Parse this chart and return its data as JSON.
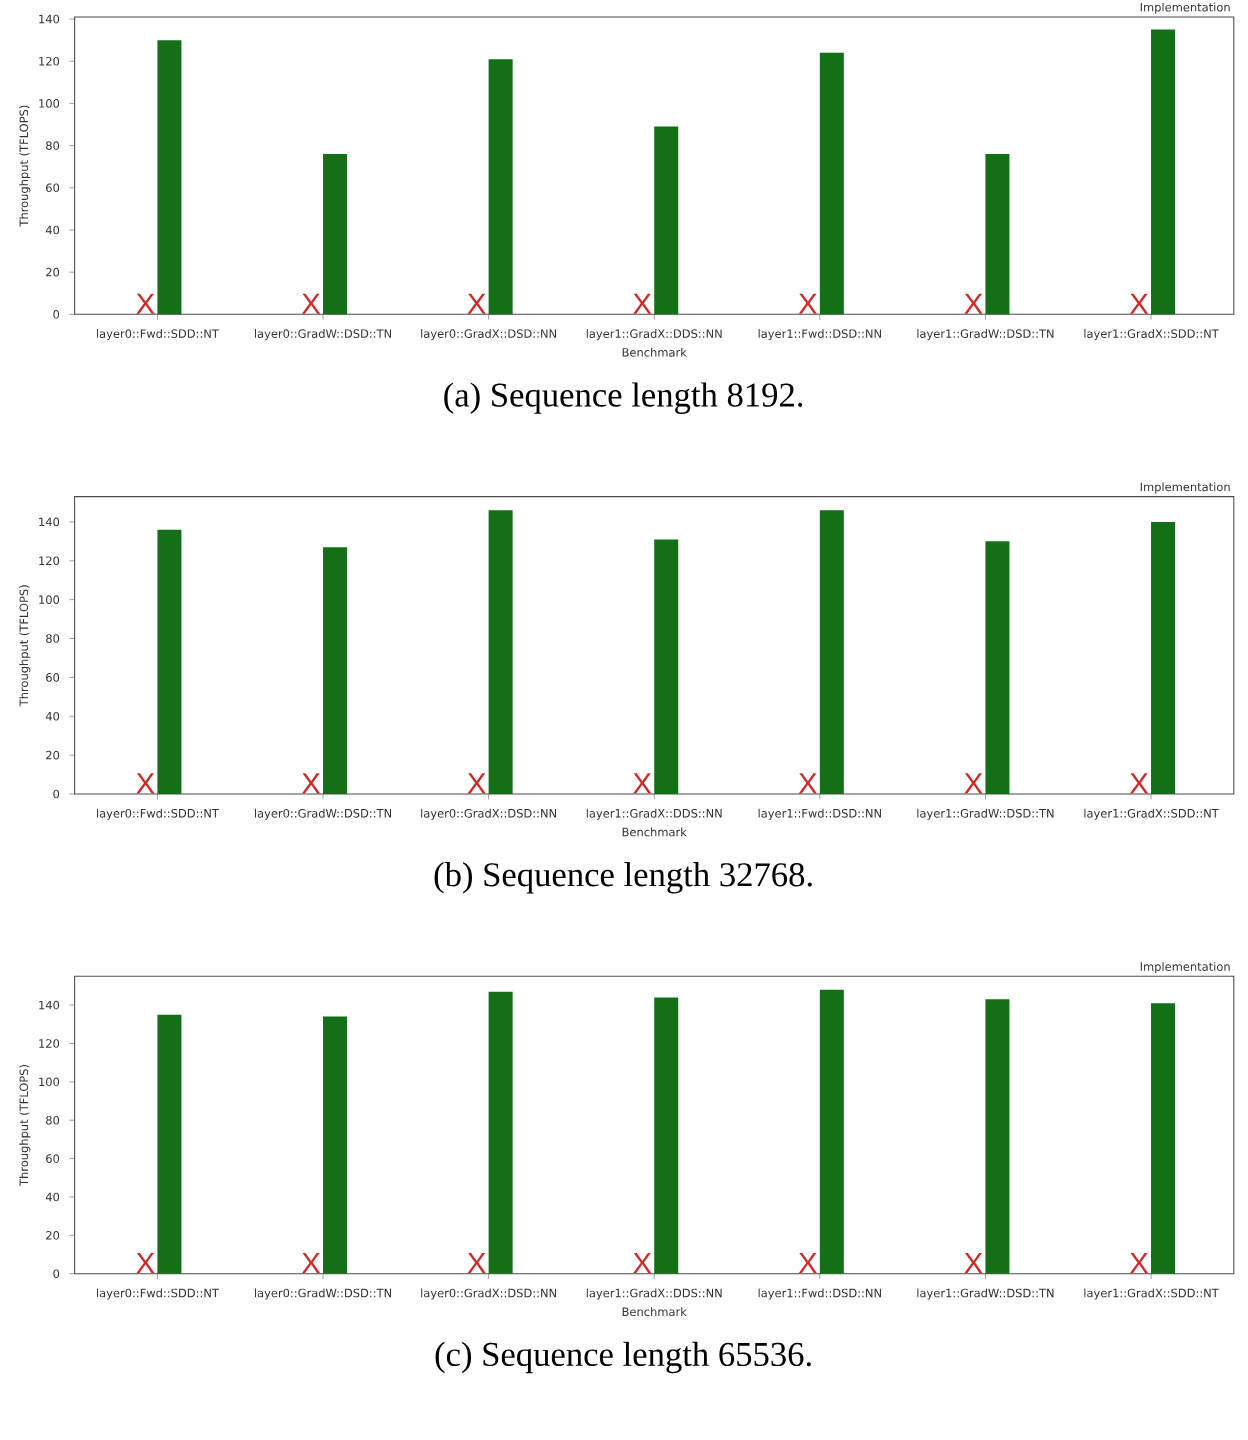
{
  "chart_data": [
    {
      "type": "bar",
      "title": "(a) Sequence length 8192.",
      "xlabel": "Benchmark",
      "ylabel": "Throughput (TFLOPS)",
      "legend_title": "Implementation",
      "categories": [
        "layer0::Fwd::SDD::NT",
        "layer0::GradW::DSD::TN",
        "layer0::GradX::DSD::NN",
        "layer1::GradX::DDS::NN",
        "layer1::Fwd::DSD::NN",
        "layer1::GradW::DSD::TN",
        "layer1::GradX::SDD::NT"
      ],
      "series": [
        {
          "color": "#d62728",
          "values": [
            null,
            null,
            null,
            null,
            null,
            null,
            null
          ]
        },
        {
          "color": "#137016",
          "values": [
            130,
            76,
            121,
            89,
            124,
            76,
            135
          ]
        }
      ],
      "ylim": [
        0,
        141
      ],
      "yticks": [
        0,
        20,
        40,
        60,
        80,
        100,
        120,
        140
      ],
      "annotations": [
        {
          "text": "X",
          "x": "layer0::Fwd::SDD::NT",
          "y": 0
        },
        {
          "text": "X",
          "x": "layer0::GradW::DSD::TN",
          "y": 0
        },
        {
          "text": "X",
          "x": "layer0::GradX::DSD::NN",
          "y": 0
        },
        {
          "text": "X",
          "x": "layer1::GradX::DDS::NN",
          "y": 0
        },
        {
          "text": "X",
          "x": "layer1::Fwd::DSD::NN",
          "y": 0
        },
        {
          "text": "X",
          "x": "layer1::GradW::DSD::TN",
          "y": 0
        },
        {
          "text": "X",
          "x": "layer1::GradX::SDD::NT",
          "y": 0
        }
      ]
    },
    {
      "type": "bar",
      "title": "(b) Sequence length 32768.",
      "xlabel": "Benchmark",
      "ylabel": "Throughput (TFLOPS)",
      "legend_title": "Implementation",
      "categories": [
        "layer0::Fwd::SDD::NT",
        "layer0::GradW::DSD::TN",
        "layer0::GradX::DSD::NN",
        "layer1::GradX::DDS::NN",
        "layer1::Fwd::DSD::NN",
        "layer1::GradW::DSD::TN",
        "layer1::GradX::SDD::NT"
      ],
      "series": [
        {
          "color": "#d62728",
          "values": [
            null,
            null,
            null,
            null,
            null,
            null,
            null
          ]
        },
        {
          "color": "#137016",
          "values": [
            136,
            127,
            146,
            131,
            146,
            130,
            140
          ]
        }
      ],
      "ylim": [
        0,
        153
      ],
      "yticks": [
        0,
        20,
        40,
        60,
        80,
        100,
        120,
        140
      ],
      "annotations": [
        {
          "text": "X",
          "x": "layer0::Fwd::SDD::NT",
          "y": 0
        },
        {
          "text": "X",
          "x": "layer0::GradW::DSD::TN",
          "y": 0
        },
        {
          "text": "X",
          "x": "layer0::GradX::DSD::NN",
          "y": 0
        },
        {
          "text": "X",
          "x": "layer1::GradX::DDS::NN",
          "y": 0
        },
        {
          "text": "X",
          "x": "layer1::Fwd::DSD::NN",
          "y": 0
        },
        {
          "text": "X",
          "x": "layer1::GradW::DSD::TN",
          "y": 0
        },
        {
          "text": "X",
          "x": "layer1::GradX::SDD::NT",
          "y": 0
        }
      ]
    },
    {
      "type": "bar",
      "title": "(c) Sequence length 65536.",
      "xlabel": "Benchmark",
      "ylabel": "Throughput (TFLOPS)",
      "legend_title": "Implementation",
      "categories": [
        "layer0::Fwd::SDD::NT",
        "layer0::GradW::DSD::TN",
        "layer0::GradX::DSD::NN",
        "layer1::GradX::DDS::NN",
        "layer1::Fwd::DSD::NN",
        "layer1::GradW::DSD::TN",
        "layer1::GradX::SDD::NT"
      ],
      "series": [
        {
          "color": "#d62728",
          "values": [
            null,
            null,
            null,
            null,
            null,
            null,
            null
          ]
        },
        {
          "color": "#137016",
          "values": [
            135,
            134,
            147,
            144,
            148,
            143,
            141
          ]
        }
      ],
      "ylim": [
        0,
        155
      ],
      "yticks": [
        0,
        20,
        40,
        60,
        80,
        100,
        120,
        140
      ],
      "annotations": [
        {
          "text": "X",
          "x": "layer0::Fwd::SDD::NT",
          "y": 0
        },
        {
          "text": "X",
          "x": "layer0::GradW::DSD::TN",
          "y": 0
        },
        {
          "text": "X",
          "x": "layer0::GradX::DSD::NN",
          "y": 0
        },
        {
          "text": "X",
          "x": "layer1::GradX::DDS::NN",
          "y": 0
        },
        {
          "text": "X",
          "x": "layer1::Fwd::DSD::NN",
          "y": 0
        },
        {
          "text": "X",
          "x": "layer1::GradW::DSD::TN",
          "y": 0
        },
        {
          "text": "X",
          "x": "layer1::GradX::SDD::NT",
          "y": 0
        }
      ]
    }
  ]
}
